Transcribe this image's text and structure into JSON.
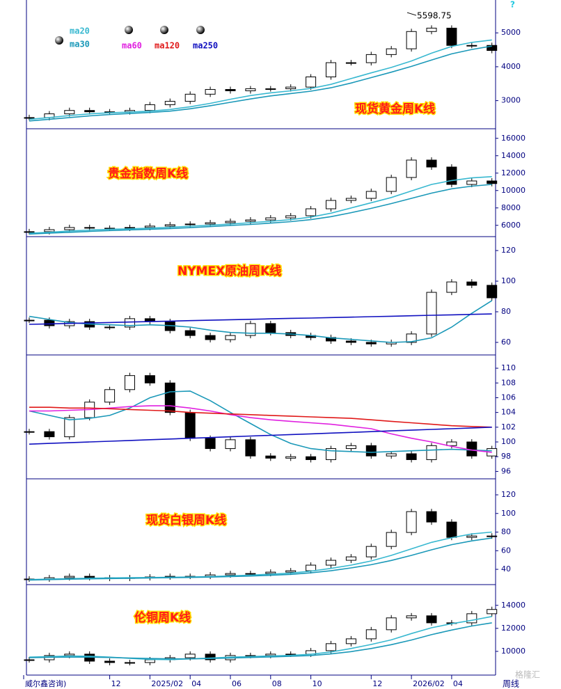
{
  "help": "?",
  "watermark": "格隆汇",
  "corner": "周线",
  "legend": [
    {
      "name": "ma20",
      "color": "#38b8d0"
    },
    {
      "name": "ma30",
      "color": "#1a98b8"
    },
    {
      "name": "ma60",
      "color": "#e020e0"
    },
    {
      "name": "ma120",
      "color": "#e01818"
    },
    {
      "name": "ma250",
      "color": "#1010c0"
    }
  ],
  "chart_data": [
    {
      "type": "candlestick",
      "title": "现货黄金周K线",
      "high_label": "5598.75",
      "high": 5598.75,
      "ylim": [
        2170,
        5970
      ],
      "yticks": [
        3000,
        4000,
        5000
      ],
      "close": [
        2500,
        2610,
        2710,
        2670,
        2670,
        2710,
        2880,
        2980,
        3190,
        3330,
        3290,
        3350,
        3350,
        3400,
        3700,
        4120,
        4120,
        4360,
        4530,
        5040,
        5140,
        4630,
        4630,
        4480
      ],
      "series": [
        {
          "color": "#38b8d0",
          "values": [
            2450,
            2500,
            2560,
            2610,
            2640,
            2660,
            2690,
            2740,
            2820,
            2920,
            3040,
            3150,
            3230,
            3290,
            3360,
            3480,
            3650,
            3820,
            3980,
            4170,
            4400,
            4600,
            4720,
            4790
          ]
        },
        {
          "color": "#1a98b8",
          "values": [
            2400,
            2450,
            2500,
            2550,
            2590,
            2620,
            2650,
            2690,
            2760,
            2850,
            2950,
            3050,
            3140,
            3210,
            3280,
            3380,
            3520,
            3680,
            3840,
            4010,
            4200,
            4380,
            4510,
            4610
          ]
        }
      ]
    },
    {
      "type": "candlestick",
      "title": "贵金指数周K线",
      "ylim": [
        4700,
        17100
      ],
      "yticks": [
        6000,
        8000,
        10000,
        12000,
        14000,
        16000
      ],
      "close": [
        5270,
        5500,
        5750,
        5670,
        5670,
        5750,
        5910,
        6070,
        6150,
        6300,
        6460,
        6620,
        6860,
        7100,
        7900,
        8860,
        9100,
        9900,
        11500,
        13500,
        12700,
        10700,
        11100,
        10800
      ],
      "series": [
        {
          "color": "#38b8d0",
          "values": [
            5100,
            5200,
            5350,
            5450,
            5550,
            5600,
            5680,
            5780,
            5900,
            6020,
            6150,
            6300,
            6460,
            6650,
            6950,
            7400,
            8000,
            8600,
            9200,
            9950,
            10700,
            11150,
            11450,
            11600
          ]
        },
        {
          "color": "#1a98b8",
          "values": [
            5000,
            5100,
            5200,
            5300,
            5400,
            5480,
            5550,
            5630,
            5730,
            5850,
            5980,
            6100,
            6250,
            6420,
            6650,
            7000,
            7450,
            7950,
            8500,
            9100,
            9700,
            10200,
            10500,
            10700
          ]
        }
      ]
    },
    {
      "type": "candlestick",
      "title": "NYMEX原油周K线",
      "ylim": [
        51.8,
        129.1
      ],
      "yticks": [
        60,
        80,
        100,
        120
      ],
      "close": [
        74.5,
        70.9,
        73.6,
        70,
        70,
        75.5,
        73.6,
        67.7,
        64.5,
        61.8,
        64.5,
        72.3,
        66.4,
        64.5,
        63.2,
        60.9,
        60,
        59,
        60,
        65.5,
        92.7,
        99.5,
        97.3,
        89.1
      ],
      "series": [
        {
          "color": "#1a98b8",
          "values": [
            77,
            75,
            73,
            72,
            71.5,
            71,
            71.5,
            71,
            70,
            68,
            66.5,
            66,
            66,
            65.5,
            64.5,
            63,
            62,
            61,
            60,
            60.5,
            63,
            70,
            79,
            87.3
          ]
        },
        {
          "color": "#1010c0",
          "values": [
            71.8,
            72.1,
            72.4,
            72.7,
            73.0,
            73.3,
            73.6,
            73.9,
            74.2,
            74.5,
            74.8,
            75.1,
            75.4,
            75.7,
            75.9,
            76.2,
            76.5,
            76.8,
            77.1,
            77.4,
            77.7,
            78.0,
            78.3,
            78.6
          ]
        }
      ]
    },
    {
      "type": "candlestick",
      "ylim": [
        95,
        111.8
      ],
      "yticks": [
        96,
        98,
        100,
        102,
        104,
        106,
        108,
        110
      ],
      "close": [
        101.4,
        100.7,
        103.3,
        105.4,
        107.1,
        109,
        108,
        104,
        100.5,
        99.1,
        100.3,
        98.1,
        97.8,
        98.0,
        97.6,
        99.1,
        99.5,
        98.1,
        98.4,
        97.6,
        99.5,
        100,
        98.1,
        99.1
      ],
      "series": [
        {
          "color": "#1a98b8",
          "values": [
            104.2,
            103.6,
            103.0,
            103.2,
            103.6,
            104.6,
            106.0,
            106.8,
            106.9,
            105.6,
            104.0,
            102.5,
            101.0,
            99.8,
            99.1,
            98.8,
            98.7,
            98.6,
            98.7,
            98.8,
            98.9,
            99.0,
            98.9,
            98.8
          ]
        },
        {
          "color": "#e020e0",
          "values": [
            104.2,
            104.2,
            104.3,
            104.4,
            104.6,
            104.8,
            104.9,
            104.9,
            104.6,
            104.2,
            103.7,
            103.3,
            103.0,
            102.8,
            102.6,
            102.4,
            102.1,
            101.8,
            101.1,
            100.5,
            100.0,
            99.4,
            98.9,
            98.6
          ]
        },
        {
          "color": "#e01818",
          "values": [
            104.7,
            104.7,
            104.6,
            104.6,
            104.5,
            104.4,
            104.3,
            104.2,
            104.0,
            103.9,
            103.8,
            103.7,
            103.6,
            103.5,
            103.4,
            103.3,
            103.2,
            103.0,
            102.8,
            102.6,
            102.4,
            102.2,
            102.1,
            102.0
          ]
        },
        {
          "color": "#1010c0",
          "values": [
            99.7,
            99.8,
            99.9,
            100.0,
            100.1,
            100.2,
            100.3,
            100.4,
            100.5,
            100.6,
            100.7,
            100.8,
            100.9,
            101.0,
            101.1,
            101.2,
            101.3,
            101.4,
            101.5,
            101.6,
            101.7,
            101.8,
            101.9,
            102.0
          ]
        }
      ]
    },
    {
      "type": "candlestick",
      "title": "现货白银周K线",
      "ylim": [
        23.6,
        137.2
      ],
      "yticks": [
        40,
        60,
        80,
        100,
        120
      ],
      "close": [
        29.6,
        31,
        32.5,
        31,
        30.3,
        31,
        31.8,
        32.5,
        32.5,
        34,
        35.5,
        35.5,
        37,
        38.5,
        44.5,
        49.7,
        53.4,
        64.6,
        79.6,
        102,
        90.8,
        74.3,
        75.8,
        75.8
      ],
      "series": [
        {
          "color": "#38b8d0",
          "values": [
            29,
            29.5,
            30,
            30.5,
            30.8,
            31,
            31.2,
            31.5,
            31.8,
            32.3,
            33,
            33.8,
            34.8,
            36,
            38,
            41,
            44.5,
            49,
            55,
            62,
            69,
            74,
            78,
            80
          ]
        },
        {
          "color": "#1a98b8",
          "values": [
            28.5,
            29,
            29.4,
            29.8,
            30.1,
            30.4,
            30.7,
            31,
            31.3,
            31.7,
            32.2,
            32.8,
            33.6,
            34.6,
            36.2,
            38.5,
            41.5,
            45,
            49.5,
            55,
            61,
            66.5,
            70.5,
            73.6
          ]
        }
      ]
    },
    {
      "type": "candlestick",
      "title": "伦铜周K线",
      "ylim": [
        7940,
        15800
      ],
      "yticks": [
        10000,
        12000,
        14000
      ],
      "categories": [
        "威尔鑫咨询)",
        null,
        null,
        null,
        "12",
        null,
        "2025/02",
        null,
        "04",
        null,
        "06",
        null,
        "08",
        null,
        "10",
        null,
        null,
        "12",
        null,
        "2026/02",
        null,
        "04",
        null,
        null
      ],
      "close": [
        9270,
        9640,
        9760,
        9150,
        9030,
        9030,
        9270,
        9450,
        9760,
        9270,
        9640,
        9640,
        9760,
        9760,
        10060,
        10670,
        11090,
        11880,
        12910,
        13090,
        12480,
        12480,
        13270,
        13640
      ],
      "series": [
        {
          "color": "#38b8d0",
          "values": [
            9500,
            9550,
            9600,
            9580,
            9500,
            9400,
            9300,
            9280,
            9350,
            9420,
            9500,
            9550,
            9600,
            9650,
            9750,
            9950,
            10250,
            10600,
            11000,
            11550,
            12050,
            12400,
            12700,
            13030
          ]
        },
        {
          "color": "#1a98b8",
          "values": [
            9450,
            9480,
            9500,
            9500,
            9470,
            9420,
            9380,
            9350,
            9350,
            9380,
            9420,
            9470,
            9520,
            9570,
            9640,
            9780,
            9980,
            10250,
            10580,
            10990,
            11450,
            11850,
            12200,
            12480
          ]
        }
      ]
    }
  ]
}
